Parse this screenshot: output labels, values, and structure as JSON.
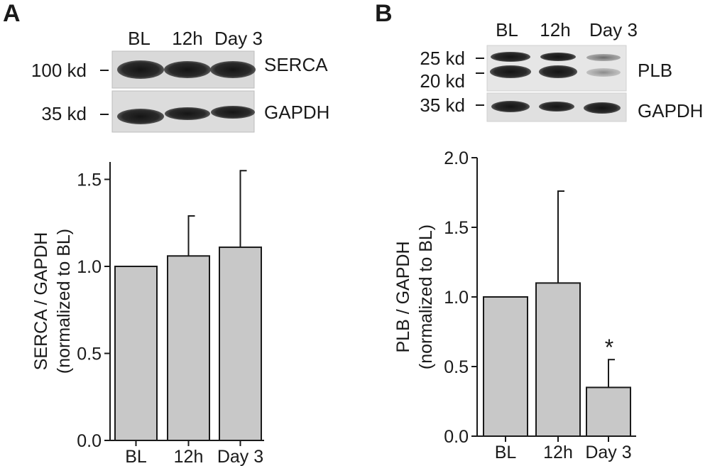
{
  "panels": [
    {
      "id": "panel-a",
      "panel_label": "A",
      "blot": {
        "lane_labels": [
          "BL",
          "12h",
          "Day 3"
        ],
        "rows": [
          {
            "marker": "100 kd",
            "protein": "SERCA"
          },
          {
            "marker": "35 kd",
            "protein": "GAPDH"
          }
        ]
      }
    },
    {
      "id": "panel-b",
      "panel_label": "B",
      "blot": {
        "lane_labels": [
          "BL",
          "12h",
          "Day 3"
        ],
        "rows": [
          {
            "marker": "25 kd",
            "protein": ""
          },
          {
            "marker": "20 kd",
            "protein": "PLB"
          },
          {
            "marker": "35 kd",
            "protein": "GAPDH"
          }
        ]
      }
    }
  ],
  "chart_data": [
    {
      "type": "bar",
      "panel": "A",
      "categories": [
        "BL",
        "12h",
        "Day 3"
      ],
      "values": [
        1.0,
        1.06,
        1.11
      ],
      "error_upper": [
        0,
        0.23,
        0.44
      ],
      "ylabel_lines": [
        "SERCA / GAPDH",
        "(normalized to BL)"
      ],
      "xlabel": "",
      "ylim": [
        0,
        1.6
      ],
      "yticks": [
        "0.0",
        "0.5",
        "1.0",
        "1.5"
      ],
      "significance": [
        "",
        "",
        ""
      ],
      "bar_color": "#c8c8c8",
      "grid": false
    },
    {
      "type": "bar",
      "panel": "B",
      "categories": [
        "BL",
        "12h",
        "Day 3"
      ],
      "values": [
        1.0,
        1.1,
        0.35
      ],
      "error_upper": [
        0,
        0.66,
        0.2
      ],
      "ylabel_lines": [
        "PLB / GAPDH",
        "(normalized to BL)"
      ],
      "xlabel": "",
      "ylim": [
        0,
        2.0
      ],
      "yticks": [
        "0.0",
        "0.5",
        "1.0",
        "1.5",
        "2.0"
      ],
      "significance": [
        "",
        "",
        "*"
      ],
      "bar_color": "#c8c8c8",
      "grid": false
    }
  ]
}
